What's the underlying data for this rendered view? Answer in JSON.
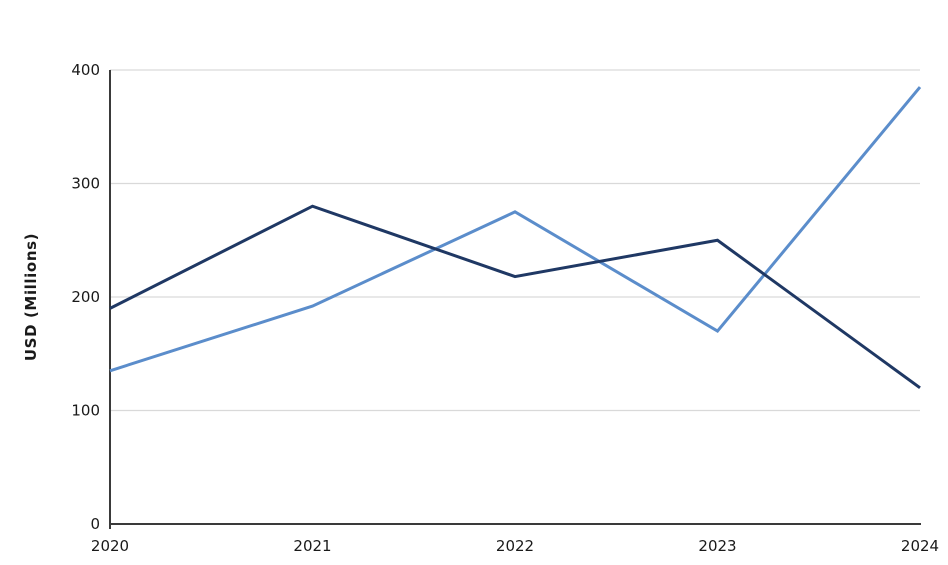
{
  "chart_data": {
    "type": "line",
    "title": "",
    "ylabel": "USD (Millions)",
    "xlabel": "",
    "x": [
      2020,
      2021,
      2022,
      2023,
      2024
    ],
    "x_tick_labels": [
      "2020",
      "2021",
      "2022",
      "2023",
      "2024"
    ],
    "y_ticks": [
      0,
      100,
      200,
      300,
      400
    ],
    "y_tick_labels": [
      "0",
      "100",
      "200",
      "300",
      "400"
    ],
    "ylim": [
      0,
      400
    ],
    "grid": true,
    "legend_position": "none",
    "series": [
      {
        "name": "light_blue_line",
        "color": "#5b8dcb",
        "values": [
          135,
          192,
          275,
          170,
          385
        ]
      },
      {
        "name": "dark_navy_line",
        "color": "#1f3864",
        "values": [
          190,
          280,
          218,
          250,
          120
        ]
      }
    ]
  },
  "style": {
    "gridline_color": "#d9d9d9",
    "axis_color": "#3a3a3a",
    "tick_label_color": "#1a1a1a",
    "background_color": "#ffffff",
    "line_width": 3
  }
}
